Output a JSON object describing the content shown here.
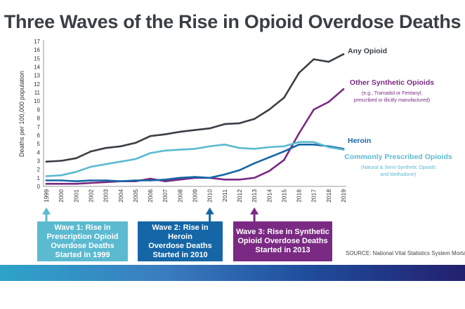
{
  "title": "Three Waves of the Rise in Opioid Overdose Deaths",
  "source": "SOURCE: National Vital Statistics System Mortality File",
  "waves": [
    {
      "lines": [
        "Wave 1: Rise in",
        "Prescription Opioid",
        "Overdose Deaths",
        "Started in 1999"
      ],
      "year": 1999,
      "color": "#5bbad0"
    },
    {
      "lines": [
        "Wave 2: Rise in Heroin",
        "Overdose Deaths",
        "Started in 2010"
      ],
      "year": 2010,
      "color": "#1566a6"
    },
    {
      "lines": [
        "Wave 3: Rise in Synthetic",
        "Opioid Overdose Deaths",
        "Started in 2013"
      ],
      "year": 2013,
      "color": "#7a2a83"
    }
  ],
  "chart_data": {
    "type": "line",
    "ylabel": "Deaths per 100,000 population",
    "xlabel": "",
    "ylim": [
      0,
      17
    ],
    "yticks": [
      0,
      1,
      2,
      3,
      4,
      5,
      6,
      7,
      8,
      9,
      10,
      11,
      12,
      13,
      14,
      15,
      16,
      17
    ],
    "x": [
      1999,
      2000,
      2001,
      2002,
      2003,
      2004,
      2005,
      2006,
      2007,
      2008,
      2009,
      2010,
      2011,
      2012,
      2013,
      2014,
      2015,
      2016,
      2017,
      2018,
      2019
    ],
    "series": [
      {
        "name": "Any Opioid",
        "color": "#3a3f45",
        "values": [
          2.9,
          3.0,
          3.3,
          4.1,
          4.5,
          4.7,
          5.1,
          5.9,
          6.1,
          6.4,
          6.6,
          6.8,
          7.3,
          7.4,
          7.9,
          9.0,
          10.4,
          13.3,
          14.9,
          14.6,
          15.5
        ]
      },
      {
        "name": "Other Synthetic Opioids",
        "color": "#7a2a83",
        "values": [
          0.3,
          0.3,
          0.3,
          0.4,
          0.5,
          0.6,
          0.6,
          0.9,
          0.6,
          0.8,
          1.0,
          1.0,
          0.8,
          0.8,
          1.0,
          1.8,
          3.1,
          6.2,
          9.0,
          9.9,
          11.4
        ]
      },
      {
        "name": "Heroin",
        "color": "#1566a6",
        "values": [
          0.7,
          0.7,
          0.6,
          0.7,
          0.7,
          0.6,
          0.7,
          0.7,
          0.8,
          1.0,
          1.1,
          1.0,
          1.4,
          1.9,
          2.7,
          3.4,
          4.1,
          4.9,
          4.9,
          4.7,
          4.4
        ]
      },
      {
        "name": "Commonly Prescribed Opioids",
        "color": "#5bbad0",
        "values": [
          1.2,
          1.3,
          1.7,
          2.3,
          2.6,
          2.9,
          3.2,
          3.9,
          4.2,
          4.3,
          4.4,
          4.7,
          4.9,
          4.5,
          4.4,
          4.6,
          4.7,
          5.2,
          5.2,
          4.6,
          4.3
        ]
      }
    ],
    "labels": [
      {
        "series": "Any Opioid",
        "lines": [
          "Any Opioid"
        ]
      },
      {
        "series": "Other Synthetic Opioids",
        "lines": [
          "Other Synthetic Opioids",
          "(e.g., Tramadol or Fentanyl,",
          "prescribed or illicitly manufactured)"
        ]
      },
      {
        "series": "Heroin",
        "lines": [
          "Heroin"
        ]
      },
      {
        "series": "Commonly Prescribed Opioids",
        "lines": [
          "Commonly Prescribed Opioids",
          "(Natural & Semi-Synthetic Opioids",
          "and Methadone)"
        ]
      }
    ]
  }
}
